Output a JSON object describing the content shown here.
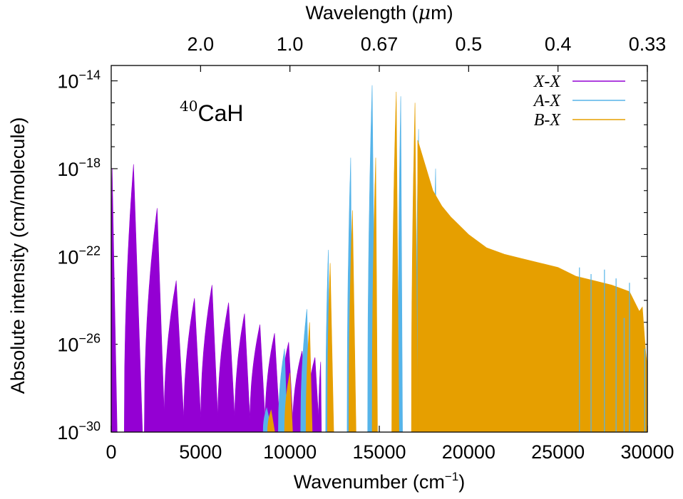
{
  "chart_data": {
    "type": "area",
    "title": "",
    "annotation": {
      "isotope": "40",
      "species": "CaH"
    },
    "xlabel": {
      "text": "Wavenumber (cm",
      "sup": "−1",
      "close": ")"
    },
    "x2label": {
      "text": "Wavelength (",
      "mu": "μ",
      "unit": "m)"
    },
    "ylabel": "Absolute intensity (cm/molecule)",
    "xlim": [
      0,
      30000
    ],
    "ylim_log10": [
      -30,
      -13.3
    ],
    "log_scale_y": true,
    "grid": false,
    "legend_position": "top-right",
    "x_ticks": [
      {
        "value": 0,
        "label": "0"
      },
      {
        "value": 5000,
        "label": "5000"
      },
      {
        "value": 10000,
        "label": "10000"
      },
      {
        "value": 15000,
        "label": "15000"
      },
      {
        "value": 20000,
        "label": "20000"
      },
      {
        "value": 25000,
        "label": "25000"
      },
      {
        "value": 30000,
        "label": "30000"
      }
    ],
    "y_ticks": [
      {
        "exp": -30,
        "base": "10",
        "sup": "−30"
      },
      {
        "exp": -26,
        "base": "10",
        "sup": "−26"
      },
      {
        "exp": -22,
        "base": "10",
        "sup": "−22"
      },
      {
        "exp": -18,
        "base": "10",
        "sup": "−18"
      },
      {
        "exp": -14,
        "base": "10",
        "sup": "−14"
      }
    ],
    "x2_ticks": [
      {
        "wavenumber": 5000,
        "label": "2.0"
      },
      {
        "wavenumber": 10000,
        "label": "1.0"
      },
      {
        "wavenumber": 15000,
        "label": "0.67"
      },
      {
        "wavenumber": 20000,
        "label": "0.5"
      },
      {
        "wavenumber": 25000,
        "label": "0.4"
      },
      {
        "wavenumber": 30000,
        "label": "0.33"
      }
    ],
    "series": [
      {
        "name": "X-X",
        "color": "#9400d3",
        "bands": [
          {
            "start": 0,
            "peak": 50,
            "peak_log": -18.0,
            "end": 330
          },
          {
            "start": 730,
            "peak": 1250,
            "peak_log": -17.8,
            "end": 1750
          },
          {
            "start": 1850,
            "peak": 2570,
            "peak_log": -19.8,
            "end": 3000
          },
          {
            "start": 2950,
            "peak": 3640,
            "peak_log": -23.1,
            "end": 4100
          },
          {
            "start": 4050,
            "peak": 4660,
            "peak_log": -23.9,
            "end": 5050
          },
          {
            "start": 5000,
            "peak": 5640,
            "peak_log": -23.3,
            "end": 6000
          },
          {
            "start": 5950,
            "peak": 6570,
            "peak_log": -24.1,
            "end": 6950
          },
          {
            "start": 6900,
            "peak": 7460,
            "peak_log": -24.6,
            "end": 7800
          },
          {
            "start": 7750,
            "peak": 8320,
            "peak_log": -25.1,
            "end": 8650
          },
          {
            "start": 8600,
            "peak": 9140,
            "peak_log": -25.5,
            "end": 9450
          },
          {
            "start": 9400,
            "peak": 9930,
            "peak_log": -25.9,
            "end": 10200
          },
          {
            "start": 10150,
            "peak": 10680,
            "peak_log": -26.3,
            "end": 10950
          },
          {
            "start": 10900,
            "peak": 11400,
            "peak_log": -26.6,
            "end": 11650
          },
          {
            "start": 11600,
            "peak": 11720,
            "peak_log": -26.8,
            "end": 11760
          }
        ]
      },
      {
        "name": "A-X",
        "color": "#56b4e9",
        "bands": [
          {
            "start": 8500,
            "peak": 8700,
            "peak_log": -28.9,
            "end": 9000
          },
          {
            "start": 9350,
            "peak": 9700,
            "peak_log": -26.2,
            "end": 9850
          },
          {
            "start": 10600,
            "peak": 10950,
            "peak_log": -24.4,
            "end": 11100
          },
          {
            "start": 12000,
            "peak": 12150,
            "peak_log": -21.7,
            "end": 12200
          },
          {
            "start": 13200,
            "peak": 13400,
            "peak_log": -17.5,
            "end": 13500
          },
          {
            "start": 14350,
            "peak": 14600,
            "peak_log": -14.2,
            "end": 14800
          },
          {
            "start": 16050,
            "peak": 16200,
            "peak_log": -14.7,
            "end": 16300
          },
          {
            "start": 17050,
            "peak": 17200,
            "peak_log": -16.2,
            "end": 17300
          },
          {
            "start": 18000,
            "peak": 18150,
            "peak_log": -18.0,
            "end": 18250
          }
        ],
        "spikes": [
          {
            "x": 26200,
            "log": -22.5
          },
          {
            "x": 26850,
            "log": -22.8
          },
          {
            "x": 27600,
            "log": -22.6
          },
          {
            "x": 28250,
            "log": -23.0
          },
          {
            "x": 28700,
            "log": -24.8
          },
          {
            "x": 29000,
            "log": -23.2
          },
          {
            "x": 29850,
            "log": -26.2
          }
        ]
      },
      {
        "name": "B-X",
        "color": "#e69f00",
        "bands": [
          {
            "start": 8750,
            "peak": 8950,
            "peak_log": -29.0,
            "end": 9150
          },
          {
            "start": 9700,
            "peak": 10000,
            "peak_log": -27.3,
            "end": 10150
          },
          {
            "start": 10900,
            "peak": 11100,
            "peak_log": -25.0,
            "end": 11250
          },
          {
            "start": 12100,
            "peak": 12250,
            "peak_log": -22.3,
            "end": 12450
          },
          {
            "start": 13300,
            "peak": 13500,
            "peak_log": -19.9,
            "end": 13700
          },
          {
            "start": 14600,
            "peak": 14800,
            "peak_log": -17.5,
            "end": 14900
          },
          {
            "start": 15700,
            "peak": 15950,
            "peak_log": -14.5,
            "end": 16100
          },
          {
            "start": 16800,
            "peak": 17000,
            "peak_log": -15.0,
            "end": 17150
          }
        ],
        "envelope": [
          [
            17150,
            -16.7
          ],
          [
            18000,
            -19.0
          ],
          [
            18500,
            -19.7
          ],
          [
            19000,
            -20.2
          ],
          [
            20000,
            -21.0
          ],
          [
            21000,
            -21.6
          ],
          [
            22000,
            -21.9
          ],
          [
            23000,
            -22.1
          ],
          [
            24000,
            -22.3
          ],
          [
            25000,
            -22.5
          ],
          [
            26000,
            -22.9
          ],
          [
            27000,
            -23.1
          ],
          [
            28000,
            -23.3
          ],
          [
            29000,
            -23.6
          ],
          [
            29550,
            -24.5
          ],
          [
            29720,
            -24.3
          ],
          [
            29900,
            -26.3
          ],
          [
            30000,
            -27.0
          ]
        ]
      }
    ]
  }
}
